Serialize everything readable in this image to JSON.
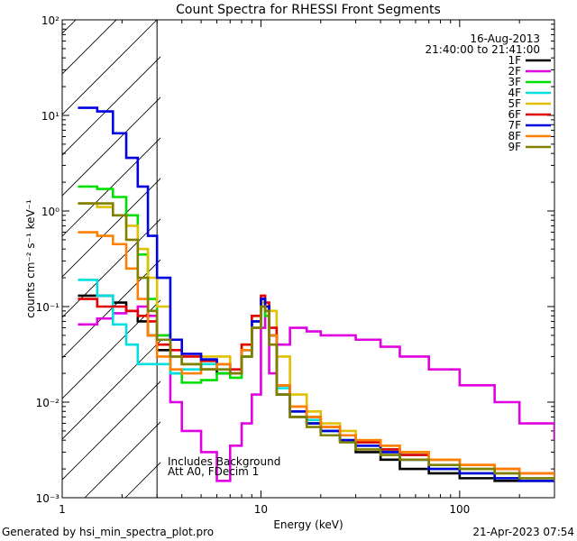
{
  "chart_data": {
    "type": "line",
    "title": "Count Spectra for RHESSI Front Segments",
    "xlabel": "Energy (keV)",
    "ylabel": "counts cm⁻² s⁻¹ keV⁻¹",
    "xscale": "log",
    "yscale": "log",
    "xlim": [
      1,
      300
    ],
    "ylim": [
      0.001,
      100
    ],
    "x_ticks": [
      "1",
      "10",
      "100"
    ],
    "y_ticks": [
      "10⁻³",
      "10⁻²",
      "10⁻¹",
      "10⁰",
      "10¹",
      "10²"
    ],
    "attenuated_region_keV": [
      1,
      3
    ],
    "date": "16-Aug-2013",
    "time_range": "21:40:00 to 21:41:00",
    "annotation_line1": "Includes Background",
    "annotation_line2": "Att A0, FDecim 1",
    "footer_left": "Generated by hsi_min_spectra_plot.pro",
    "footer_right": "21-Apr-2023 07:54",
    "series": [
      {
        "name": "1F",
        "color": "#000000",
        "x": [
          1.2,
          1.5,
          1.8,
          2.1,
          2.4,
          2.7,
          3.0,
          3.5,
          4.0,
          5.0,
          6.0,
          7.0,
          8.0,
          9.0,
          10.0,
          10.5,
          11.0,
          12.0,
          14.0,
          17.0,
          20.0,
          25.0,
          30.0,
          40.0,
          50.0,
          70.0,
          100.0,
          150.0,
          200.0,
          300.0
        ],
        "values": [
          0.13,
          0.13,
          0.11,
          0.09,
          0.07,
          0.05,
          0.035,
          0.03,
          0.025,
          0.022,
          0.02,
          0.02,
          0.03,
          0.07,
          0.12,
          0.1,
          0.05,
          0.012,
          0.007,
          0.006,
          0.005,
          0.004,
          0.003,
          0.0025,
          0.002,
          0.0018,
          0.0016,
          0.0015,
          0.0015,
          0.0015
        ]
      },
      {
        "name": "2F",
        "color": "#e000e0",
        "x": [
          1.2,
          1.5,
          1.8,
          2.1,
          2.4,
          2.7,
          3.0,
          3.5,
          4.0,
          5.0,
          6.0,
          7.0,
          8.0,
          9.0,
          10.0,
          10.5,
          11.0,
          12.0,
          14.0,
          17.0,
          20.0,
          25.0,
          30.0,
          40.0,
          50.0,
          70.0,
          100.0,
          150.0,
          200.0,
          300.0
        ],
        "values": [
          0.065,
          0.075,
          0.085,
          0.09,
          0.1,
          0.08,
          0.05,
          0.01,
          0.005,
          0.003,
          0.0015,
          0.0035,
          0.006,
          0.012,
          0.06,
          0.09,
          0.02,
          0.04,
          0.06,
          0.055,
          0.05,
          0.05,
          0.045,
          0.038,
          0.03,
          0.022,
          0.015,
          0.01,
          0.006,
          0.004
        ]
      },
      {
        "name": "3F",
        "color": "#00e000",
        "x": [
          1.2,
          1.5,
          1.8,
          2.1,
          2.4,
          2.7,
          3.0,
          3.5,
          4.0,
          5.0,
          6.0,
          7.0,
          8.0,
          9.0,
          10.0,
          10.5,
          11.0,
          12.0,
          14.0,
          17.0,
          20.0,
          25.0,
          30.0,
          40.0,
          50.0,
          70.0,
          100.0,
          150.0,
          200.0,
          300.0
        ],
        "values": [
          1.8,
          1.7,
          1.4,
          0.9,
          0.35,
          0.12,
          0.05,
          0.02,
          0.016,
          0.017,
          0.02,
          0.018,
          0.03,
          0.07,
          0.12,
          0.08,
          0.05,
          0.015,
          0.008,
          0.006,
          0.005,
          0.004,
          0.0035,
          0.003,
          0.0025,
          0.002,
          0.0018,
          0.0016,
          0.0015,
          0.0015
        ]
      },
      {
        "name": "4F",
        "color": "#00e0e0",
        "x": [
          1.2,
          1.5,
          1.8,
          2.1,
          2.4,
          2.7,
          3.0,
          3.5,
          4.0,
          5.0,
          6.0,
          7.0,
          8.0,
          9.0,
          10.0,
          10.5,
          11.0,
          12.0,
          14.0,
          17.0,
          20.0,
          25.0,
          30.0,
          40.0,
          50.0,
          70.0,
          100.0,
          150.0,
          200.0,
          300.0
        ],
        "values": [
          0.19,
          0.13,
          0.065,
          0.04,
          0.025,
          0.025,
          0.025,
          0.02,
          0.022,
          0.025,
          0.022,
          0.02,
          0.035,
          0.06,
          0.1,
          0.09,
          0.05,
          0.014,
          0.008,
          0.0065,
          0.005,
          0.0045,
          0.0038,
          0.0032,
          0.0028,
          0.0025,
          0.002,
          0.0018,
          0.0016,
          0.0015
        ]
      },
      {
        "name": "5F",
        "color": "#e0c000",
        "x": [
          1.2,
          1.5,
          1.8,
          2.1,
          2.4,
          2.7,
          3.0,
          3.5,
          4.0,
          5.0,
          6.0,
          7.0,
          8.0,
          9.0,
          10.0,
          10.5,
          11.0,
          12.0,
          14.0,
          17.0,
          20.0,
          25.0,
          30.0,
          40.0,
          50.0,
          70.0,
          100.0,
          150.0,
          200.0,
          300.0
        ],
        "values": [
          1.2,
          1.1,
          0.9,
          0.7,
          0.4,
          0.2,
          0.1,
          0.03,
          0.025,
          0.03,
          0.03,
          0.02,
          0.04,
          0.08,
          0.11,
          0.1,
          0.09,
          0.03,
          0.012,
          0.008,
          0.006,
          0.005,
          0.004,
          0.0035,
          0.003,
          0.0025,
          0.002,
          0.0018,
          0.0016,
          0.0015
        ]
      },
      {
        "name": "6F",
        "color": "#e00000",
        "x": [
          1.2,
          1.5,
          1.8,
          2.1,
          2.4,
          2.7,
          3.0,
          3.5,
          4.0,
          5.0,
          6.0,
          7.0,
          8.0,
          9.0,
          10.0,
          10.5,
          11.0,
          12.0,
          14.0,
          17.0,
          20.0,
          25.0,
          30.0,
          40.0,
          50.0,
          70.0,
          100.0,
          150.0,
          200.0,
          300.0
        ],
        "values": [
          0.12,
          0.1,
          0.1,
          0.09,
          0.08,
          0.07,
          0.04,
          0.035,
          0.03,
          0.027,
          0.025,
          0.022,
          0.04,
          0.08,
          0.13,
          0.11,
          0.06,
          0.015,
          0.009,
          0.007,
          0.0055,
          0.0045,
          0.0038,
          0.0032,
          0.0028,
          0.0025,
          0.0022,
          0.002,
          0.0018,
          0.0017
        ]
      },
      {
        "name": "7F",
        "color": "#0000e0",
        "x": [
          1.2,
          1.5,
          1.8,
          2.1,
          2.4,
          2.7,
          3.0,
          3.5,
          4.0,
          5.0,
          6.0,
          7.0,
          8.0,
          9.0,
          10.0,
          10.5,
          11.0,
          12.0,
          14.0,
          17.0,
          20.0,
          25.0,
          30.0,
          40.0,
          50.0,
          70.0,
          100.0,
          150.0,
          200.0,
          300.0
        ],
        "values": [
          12.0,
          11.0,
          6.5,
          3.6,
          1.8,
          0.55,
          0.2,
          0.045,
          0.032,
          0.028,
          0.025,
          0.02,
          0.035,
          0.07,
          0.12,
          0.1,
          0.05,
          0.015,
          0.008,
          0.006,
          0.005,
          0.004,
          0.0035,
          0.003,
          0.0025,
          0.002,
          0.0018,
          0.0016,
          0.0015,
          0.0015
        ]
      },
      {
        "name": "8F",
        "color": "#ff8000",
        "x": [
          1.2,
          1.5,
          1.8,
          2.1,
          2.4,
          2.7,
          3.0,
          3.5,
          4.0,
          5.0,
          6.0,
          7.0,
          8.0,
          9.0,
          10.0,
          10.5,
          11.0,
          12.0,
          14.0,
          17.0,
          20.0,
          25.0,
          30.0,
          40.0,
          50.0,
          70.0,
          100.0,
          150.0,
          200.0,
          300.0
        ],
        "values": [
          0.6,
          0.55,
          0.45,
          0.25,
          0.12,
          0.05,
          0.03,
          0.022,
          0.02,
          0.022,
          0.025,
          0.02,
          0.035,
          0.06,
          0.1,
          0.09,
          0.05,
          0.015,
          0.009,
          0.007,
          0.0055,
          0.0045,
          0.004,
          0.0035,
          0.003,
          0.0025,
          0.0022,
          0.002,
          0.0018,
          0.0016
        ]
      },
      {
        "name": "9F",
        "color": "#808000",
        "x": [
          1.2,
          1.5,
          1.8,
          2.1,
          2.4,
          2.7,
          3.0,
          3.5,
          4.0,
          5.0,
          6.0,
          7.0,
          8.0,
          9.0,
          10.0,
          10.5,
          11.0,
          12.0,
          14.0,
          17.0,
          20.0,
          25.0,
          30.0,
          40.0,
          50.0,
          70.0,
          100.0,
          150.0,
          200.0,
          300.0
        ],
        "values": [
          1.2,
          1.2,
          0.9,
          0.5,
          0.2,
          0.09,
          0.045,
          0.03,
          0.025,
          0.022,
          0.022,
          0.02,
          0.03,
          0.06,
          0.1,
          0.09,
          0.04,
          0.012,
          0.007,
          0.0055,
          0.0045,
          0.0038,
          0.0032,
          0.0028,
          0.0025,
          0.0022,
          0.002,
          0.0018,
          0.0016,
          0.0015
        ]
      }
    ]
  }
}
